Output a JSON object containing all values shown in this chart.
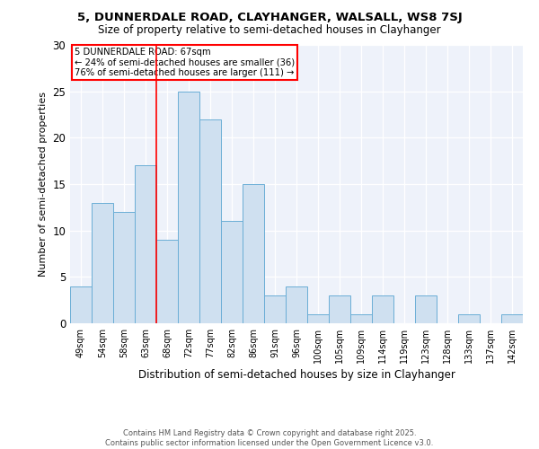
{
  "title1": "5, DUNNERDALE ROAD, CLAYHANGER, WALSALL, WS8 7SJ",
  "title2": "Size of property relative to semi-detached houses in Clayhanger",
  "xlabel": "Distribution of semi-detached houses by size in Clayhanger",
  "ylabel": "Number of semi-detached properties",
  "categories": [
    "49sqm",
    "54sqm",
    "58sqm",
    "63sqm",
    "68sqm",
    "72sqm",
    "77sqm",
    "82sqm",
    "86sqm",
    "91sqm",
    "96sqm",
    "100sqm",
    "105sqm",
    "109sqm",
    "114sqm",
    "119sqm",
    "123sqm",
    "128sqm",
    "133sqm",
    "137sqm",
    "142sqm"
  ],
  "values": [
    4,
    13,
    12,
    17,
    9,
    25,
    22,
    11,
    15,
    3,
    4,
    1,
    3,
    1,
    3,
    0,
    3,
    0,
    1,
    0,
    1
  ],
  "bar_color": "#cfe0f0",
  "bar_edge_color": "#6baed6",
  "red_line_index": 4,
  "annotation_title": "5 DUNNERDALE ROAD: 67sqm",
  "annotation_line1": "← 24% of semi-detached houses are smaller (36)",
  "annotation_line2": "76% of semi-detached houses are larger (111) →",
  "footer1": "Contains HM Land Registry data © Crown copyright and database right 2025.",
  "footer2": "Contains public sector information licensed under the Open Government Licence v3.0.",
  "ylim": [
    0,
    30
  ],
  "yticks": [
    0,
    5,
    10,
    15,
    20,
    25,
    30
  ],
  "bg_color": "#ffffff",
  "plot_bg_color": "#eef2fa"
}
